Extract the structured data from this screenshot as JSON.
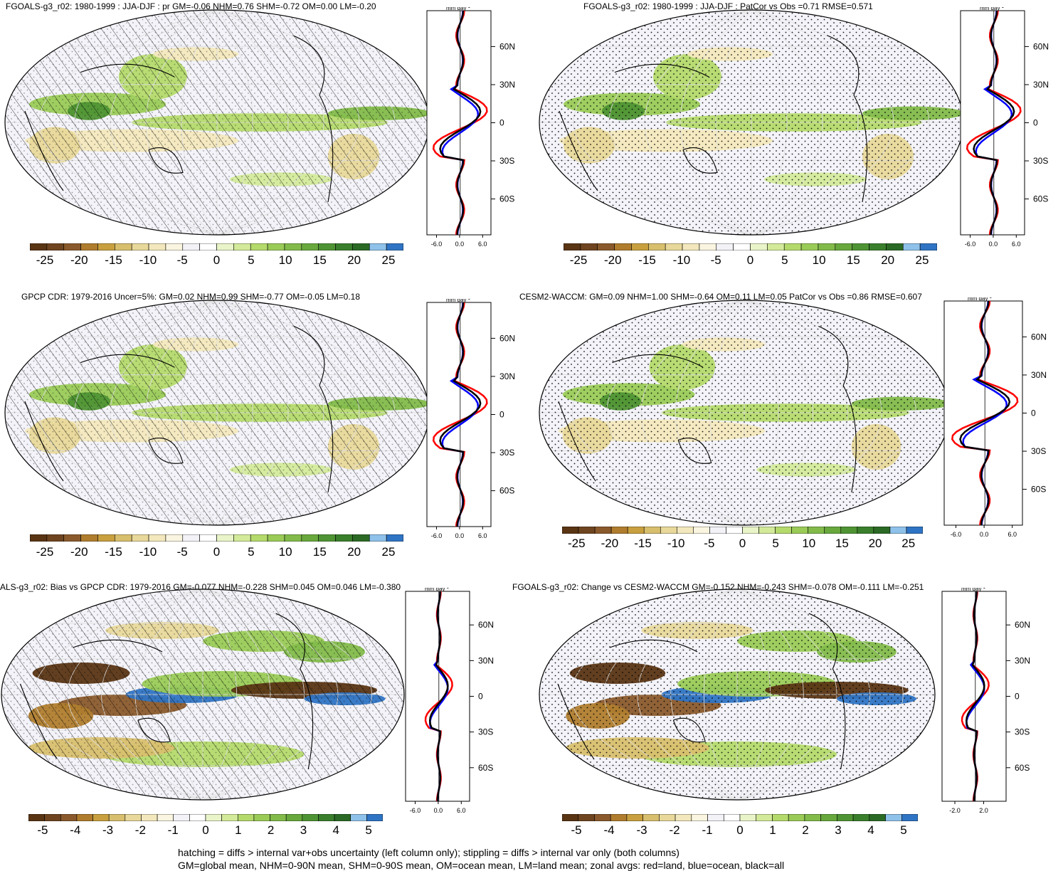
{
  "panels": [
    {
      "title": "FGOALS-g3_r02: 1980-1999 : JJA-DJF : pr GM=-0.06 NHM=0.76 SHM=-0.72 OM=0.00 LM=-0.20",
      "lat_ticks": [
        "60N",
        "30N",
        "0",
        "30S",
        "60S"
      ],
      "zonal_x_ticks": [
        "-6.0",
        "0.0",
        "6.0"
      ],
      "units": "mm day",
      "units_sup": "-1",
      "colorbar_ticks": [
        "-25",
        "-20",
        "-15",
        "-10",
        "-5",
        "0",
        "5",
        "10",
        "15",
        "20",
        "25"
      ],
      "overlay": "hatch"
    },
    {
      "title": "FGOALS-g3_r02: 1980-1999 : JJA-DJF : PatCor vs Obs =0.71 RMSE=0.571",
      "lat_ticks": [
        "60N",
        "30N",
        "0",
        "30S",
        "60S"
      ],
      "zonal_x_ticks": [
        "-6.0",
        "0.0",
        "6.0"
      ],
      "units": "mm day",
      "units_sup": "-1",
      "colorbar_ticks": [
        "-25",
        "-20",
        "-15",
        "-10",
        "-5",
        "0",
        "5",
        "10",
        "15",
        "20",
        "25"
      ],
      "overlay": "stipple"
    },
    {
      "title": "GPCP CDR: 1979-2016 Uncer=5%: GM=0.02 NHM=0.99 SHM=-0.77 OM=-0.05 LM=0.18",
      "lat_ticks": [
        "60N",
        "30N",
        "0",
        "30S",
        "60S"
      ],
      "zonal_x_ticks": [
        "-6.0",
        "0.0",
        "6.0"
      ],
      "units": "mm day",
      "units_sup": "-1",
      "colorbar_ticks": [
        "-25",
        "-20",
        "-15",
        "-10",
        "-5",
        "0",
        "5",
        "10",
        "15",
        "20",
        "25"
      ],
      "overlay": "hatch"
    },
    {
      "title": "CESM2-WACCM: GM=0.09 NHM=1.00 SHM=-0.64 OM=0.11 LM=0.05 PatCor vs Obs =0.86 RMSE=0.607",
      "lat_ticks": [
        "60N",
        "30N",
        "0",
        "30S",
        "60S"
      ],
      "zonal_x_ticks": [
        "-6.0",
        "0.0",
        "6.0"
      ],
      "units": "mm day",
      "units_sup": "-1",
      "colorbar_ticks": [
        "-25",
        "-20",
        "-15",
        "-10",
        "-5",
        "0",
        "5",
        "10",
        "15",
        "20",
        "25"
      ],
      "overlay": "stipple"
    },
    {
      "title": "ALS-g3_r02: Bias vs GPCP CDR: 1979-2016 GM=-0.077 NHM=-0.228 SHM=0.045 OM=0.046 LM=-0.380",
      "lat_ticks": [
        "60N",
        "30N",
        "0",
        "30S",
        "60S"
      ],
      "zonal_x_ticks": [
        "-6.0",
        "0.0",
        "6.0"
      ],
      "units": "mm day",
      "units_sup": "-1",
      "colorbar_ticks": [
        "-5",
        "-4",
        "-3",
        "-2",
        "-1",
        "0",
        "1",
        "2",
        "3",
        "4",
        "5"
      ],
      "overlay": "hatch"
    },
    {
      "title": "FGOALS-g3_r02: Change vs CESM2-WACCM GM=-0.152 NHM=-0.243 SHM=-0.078 OM=-0.111 LM=-0.251",
      "lat_ticks": [
        "60N",
        "30N",
        "0",
        "30S",
        "60S"
      ],
      "zonal_x_ticks": [
        "-2.0",
        "2.0"
      ],
      "units": "mm day",
      "units_sup": "-1",
      "colorbar_ticks": [
        "-5",
        "-4",
        "-3",
        "-2",
        "-1",
        "0",
        "1",
        "2",
        "3",
        "4",
        "5"
      ],
      "overlay": "stipple"
    }
  ],
  "colorbar_colors": [
    "#5a3514",
    "#6e4520",
    "#8a5a2c",
    "#b07d2e",
    "#c9a03f",
    "#d8bf6e",
    "#e8d89a",
    "#f3e8bd",
    "#faf5e0",
    "#f2f2f7",
    "#ffffff",
    "#e9f4c8",
    "#d3ea9a",
    "#b4da6c",
    "#9acb57",
    "#82bb4a",
    "#68a83d",
    "#4f9434",
    "#3a7f2c",
    "#2b6a25",
    "#8fc2ea",
    "#2f74c4"
  ],
  "line_colors": {
    "land": "#ff0000",
    "ocean": "#0000ff",
    "all": "#000000"
  },
  "footnote": {
    "line1": "hatching = diffs > internal var+obs uncertainty (left column only); stippling = diffs > internal var only (both columns)",
    "line2": "GM=global mean, NHM=0-90N mean, SHM=0-90S mean, OM=ocean mean, LM=land mean; zonal avgs: red=land, blue=ocean, black=all"
  }
}
